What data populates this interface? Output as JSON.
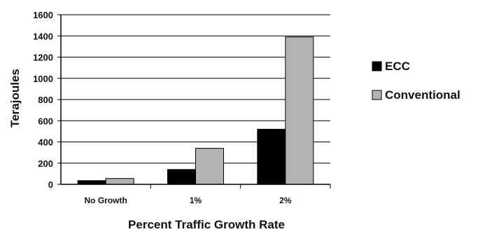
{
  "chart_data": {
    "type": "bar",
    "title": "",
    "xlabel": "Percent Traffic Growth Rate",
    "ylabel": "Terajoules",
    "categories": [
      "No Growth",
      "1%",
      "2%"
    ],
    "series": [
      {
        "name": "ECC",
        "values": [
          35,
          140,
          520
        ],
        "color": "#000000"
      },
      {
        "name": "Conventional",
        "values": [
          55,
          340,
          1390
        ],
        "color": "#b3b3b3"
      }
    ],
    "ylim": [
      0,
      1600
    ],
    "yticks": [
      0,
      200,
      400,
      600,
      800,
      1000,
      1200,
      1400,
      1600
    ],
    "grid": true,
    "legend": "right"
  }
}
